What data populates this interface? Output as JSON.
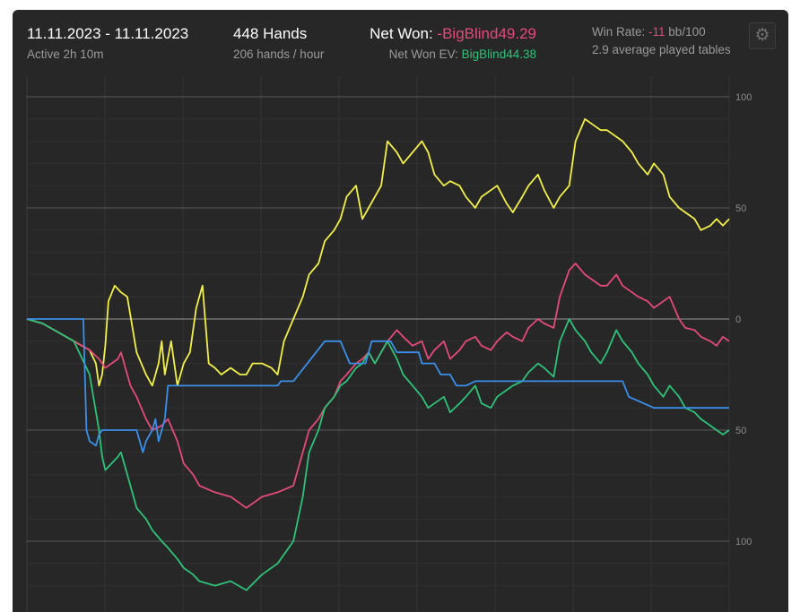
{
  "header": {
    "date_range": "11.11.2023 - 11.11.2023",
    "active": "Active 2h 10m",
    "hands": "448 Hands",
    "hands_rate": "206 hands / hour",
    "net_won_label": "Net Won: ",
    "net_won_value": "-BigBlind49.29",
    "net_won_ev_label": "Net Won  EV: ",
    "net_won_ev_value": "BigBlind44.38",
    "win_rate_label": "Win Rate: ",
    "win_rate_value": "-11",
    "win_rate_unit": " bb/100",
    "avg_tables": "2.9 average played tables",
    "settings_icon": "gear-icon"
  },
  "colors": {
    "background": "#272727",
    "yellow": "#f2f04a",
    "pink": "#e44a7a",
    "green": "#2fc279",
    "blue": "#3a8fe8"
  },
  "chart_data": {
    "type": "line",
    "ytick_labels": [
      {
        "value": 100,
        "label": "100"
      },
      {
        "value": 50,
        "label": "50"
      },
      {
        "value": 0,
        "label": "0"
      },
      {
        "value": -50,
        "label": "50"
      },
      {
        "value": -100,
        "label": "100"
      }
    ],
    "ylim": [
      -125,
      100
    ],
    "xlim": [
      0,
      448
    ],
    "grid": true,
    "series": [
      {
        "color": "#f2f04a",
        "x": [
          0,
          10,
          20,
          30,
          40,
          44,
          46,
          48,
          50,
          52,
          56,
          60,
          64,
          70,
          76,
          80,
          84,
          86,
          88,
          92,
          96,
          100,
          104,
          108,
          112,
          116,
          120,
          124,
          130,
          136,
          140,
          144,
          150,
          156,
          160,
          164,
          170,
          176,
          180,
          186,
          190,
          196,
          200,
          204,
          210,
          214,
          218,
          222,
          226,
          230,
          236,
          240,
          246,
          252,
          256,
          260,
          266,
          270,
          276,
          280,
          286,
          290,
          296,
          300,
          306,
          310,
          316,
          320,
          326,
          330,
          336,
          340,
          346,
          350,
          356,
          360,
          366,
          370,
          376,
          380,
          386,
          390,
          396,
          400,
          406,
          410,
          416,
          420,
          426,
          430,
          436,
          440,
          444,
          448
        ],
        "y": [
          0,
          -2,
          -6,
          -10,
          -14,
          -20,
          -30,
          -25,
          -12,
          8,
          15,
          12,
          10,
          -15,
          -25,
          -30,
          -20,
          -10,
          -25,
          -10,
          -30,
          -20,
          -15,
          5,
          15,
          -20,
          -22,
          -25,
          -22,
          -25,
          -25,
          -20,
          -20,
          -22,
          -25,
          -10,
          0,
          10,
          20,
          25,
          35,
          40,
          45,
          55,
          60,
          45,
          50,
          55,
          60,
          80,
          75,
          70,
          75,
          80,
          75,
          65,
          60,
          62,
          60,
          55,
          50,
          55,
          58,
          60,
          52,
          48,
          55,
          60,
          65,
          58,
          50,
          55,
          60,
          80,
          90,
          88,
          85,
          85,
          82,
          80,
          75,
          70,
          65,
          70,
          65,
          55,
          50,
          48,
          45,
          40,
          42,
          45,
          42,
          45
        ]
      },
      {
        "color": "#e44a7a",
        "x": [
          0,
          10,
          20,
          30,
          40,
          46,
          48,
          50,
          54,
          58,
          60,
          66,
          70,
          76,
          80,
          86,
          90,
          96,
          100,
          106,
          110,
          120,
          130,
          140,
          150,
          160,
          170,
          176,
          180,
          186,
          190,
          196,
          200,
          204,
          210,
          214,
          218,
          222,
          226,
          230,
          236,
          240,
          246,
          252,
          256,
          260,
          266,
          270,
          276,
          280,
          286,
          290,
          296,
          300,
          306,
          310,
          316,
          320,
          326,
          330,
          336,
          340,
          346,
          350,
          356,
          360,
          366,
          370,
          376,
          380,
          386,
          390,
          396,
          400,
          406,
          410,
          416,
          420,
          426,
          430,
          436,
          440,
          444,
          448
        ],
        "y": [
          0,
          -2,
          -6,
          -10,
          -14,
          -18,
          -20,
          -22,
          -20,
          -18,
          -15,
          -30,
          -35,
          -45,
          -50,
          -48,
          -45,
          -55,
          -65,
          -70,
          -75,
          -78,
          -80,
          -85,
          -80,
          -78,
          -75,
          -60,
          -50,
          -45,
          -40,
          -35,
          -28,
          -25,
          -20,
          -18,
          -15,
          -20,
          -15,
          -10,
          -5,
          -8,
          -12,
          -10,
          -18,
          -14,
          -10,
          -18,
          -14,
          -10,
          -8,
          -12,
          -14,
          -10,
          -6,
          -8,
          -10,
          -4,
          0,
          -2,
          -4,
          10,
          22,
          25,
          20,
          18,
          15,
          15,
          20,
          15,
          12,
          10,
          8,
          5,
          8,
          10,
          0,
          -4,
          -5,
          -8,
          -10,
          -12,
          -8,
          -10
        ]
      },
      {
        "color": "#2fc279",
        "x": [
          0,
          10,
          20,
          30,
          40,
          46,
          48,
          50,
          54,
          58,
          60,
          66,
          70,
          76,
          80,
          86,
          90,
          96,
          100,
          106,
          110,
          120,
          130,
          140,
          150,
          160,
          170,
          176,
          180,
          186,
          190,
          196,
          200,
          204,
          210,
          214,
          218,
          222,
          226,
          230,
          236,
          240,
          246,
          252,
          256,
          260,
          266,
          270,
          276,
          280,
          286,
          290,
          296,
          300,
          306,
          310,
          316,
          320,
          326,
          330,
          336,
          340,
          346,
          350,
          356,
          360,
          366,
          370,
          376,
          380,
          386,
          390,
          396,
          400,
          406,
          410,
          416,
          420,
          426,
          430,
          436,
          440,
          444,
          448
        ],
        "y": [
          0,
          -2,
          -6,
          -10,
          -25,
          -50,
          -62,
          -68,
          -65,
          -62,
          -60,
          -75,
          -85,
          -90,
          -95,
          -100,
          -103,
          -108,
          -112,
          -115,
          -118,
          -120,
          -118,
          -122,
          -115,
          -110,
          -100,
          -80,
          -60,
          -50,
          -40,
          -35,
          -30,
          -28,
          -22,
          -20,
          -15,
          -20,
          -15,
          -10,
          -18,
          -25,
          -30,
          -35,
          -40,
          -38,
          -35,
          -42,
          -38,
          -35,
          -30,
          -38,
          -40,
          -35,
          -32,
          -30,
          -28,
          -24,
          -20,
          -22,
          -26,
          -10,
          0,
          -5,
          -10,
          -15,
          -20,
          -15,
          -5,
          -10,
          -15,
          -20,
          -25,
          -30,
          -35,
          -30,
          -35,
          -40,
          -42,
          -45,
          -48,
          -50,
          -52,
          -50
        ]
      },
      {
        "color": "#3a8fe8",
        "x": [
          0,
          36,
          38,
          40,
          44,
          46,
          48,
          50,
          70,
          72,
          74,
          76,
          80,
          82,
          84,
          86,
          88,
          90,
          160,
          162,
          170,
          190,
          200,
          206,
          216,
          220,
          232,
          236,
          250,
          252,
          260,
          264,
          270,
          274,
          280,
          286,
          340,
          344,
          350,
          358,
          380,
          384,
          400,
          440,
          448
        ],
        "y": [
          0,
          0,
          -50,
          -55,
          -57,
          -52,
          -50,
          -50,
          -50,
          -55,
          -60,
          -55,
          -50,
          -45,
          -55,
          -50,
          -45,
          -30,
          -30,
          -28,
          -28,
          -10,
          -10,
          -20,
          -20,
          -10,
          -10,
          -15,
          -15,
          -20,
          -20,
          -25,
          -25,
          -30,
          -30,
          -28,
          -28,
          -28,
          -28,
          -28,
          -28,
          -35,
          -40,
          -40,
          -40
        ]
      }
    ]
  }
}
